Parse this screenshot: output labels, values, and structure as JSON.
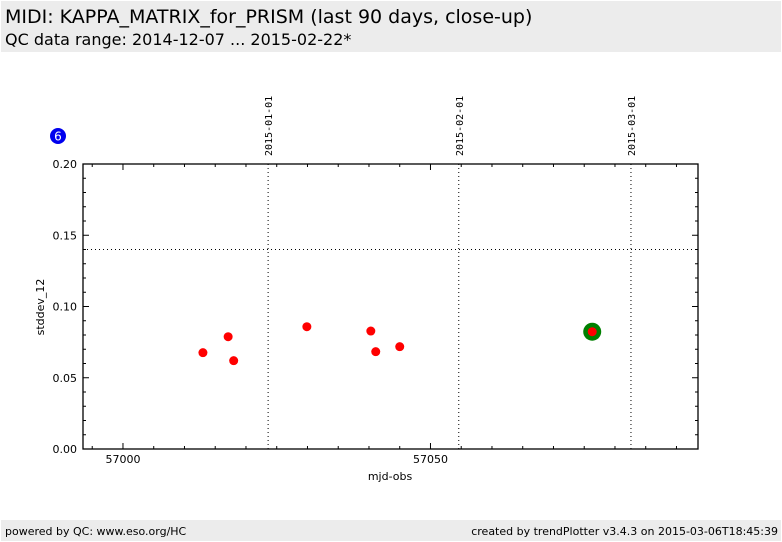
{
  "header": {
    "title": "MIDI: KAPPA_MATRIX_for_PRISM (last 90 days, close-up)",
    "subtitle": "QC data range: 2014-12-07 ... 2015-02-22*"
  },
  "footer": {
    "left": "powered by QC: www.eso.org/HC",
    "right": "created by trendPlotter v3.4.3 on 2015-03-06T18:45:39"
  },
  "badge": {
    "label": "6",
    "color": "#0000ee"
  },
  "chart_data": {
    "type": "scatter",
    "xlabel": "mjd-obs",
    "ylabel": "stddev_12",
    "xlim": [
      56993.5,
      57093.5
    ],
    "ylim": [
      0,
      0.2
    ],
    "xticks": [
      {
        "v": 57000,
        "label": "57000"
      },
      {
        "v": 57050,
        "label": "57050"
      }
    ],
    "xminor_step": 5,
    "yticks": [
      {
        "v": 0,
        "label": "0.00"
      },
      {
        "v": 0.05,
        "label": "0.05"
      },
      {
        "v": 0.1,
        "label": "0.10"
      },
      {
        "v": 0.15,
        "label": "0.15"
      },
      {
        "v": 0.2,
        "label": "0.20"
      }
    ],
    "yminor_step": 0.01,
    "threshold": 0.14,
    "date_lines": [
      {
        "v": 57023.6,
        "label": "2015-01-01"
      },
      {
        "v": 57054.6,
        "label": "2015-02-01"
      },
      {
        "v": 57082.6,
        "label": "2015-03-01"
      }
    ],
    "point_color": "#ff0000",
    "highlight_color": "#008000",
    "points": [
      {
        "x": 57013.0,
        "y": 0.0676
      },
      {
        "x": 57017.1,
        "y": 0.0788
      },
      {
        "x": 57018.0,
        "y": 0.062
      },
      {
        "x": 57029.9,
        "y": 0.0858
      },
      {
        "x": 57040.3,
        "y": 0.0828
      },
      {
        "x": 57041.1,
        "y": 0.0683
      },
      {
        "x": 57045.0,
        "y": 0.0718
      },
      {
        "x": 57076.3,
        "y": 0.0823,
        "highlight": true
      }
    ]
  }
}
